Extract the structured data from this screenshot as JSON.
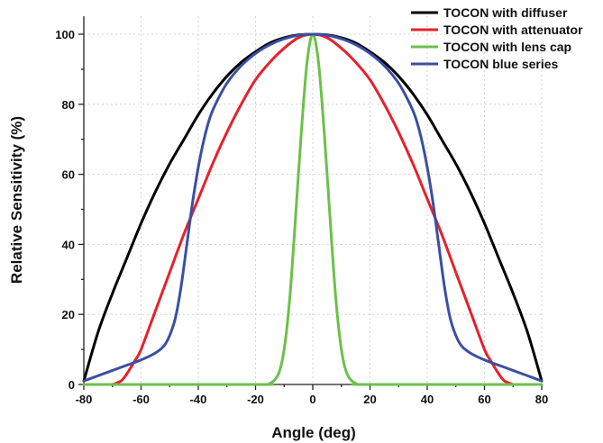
{
  "chart_data": {
    "type": "line",
    "title": "",
    "xlabel": "Angle (deg)",
    "ylabel": "Relative Sensitivity (%)",
    "xlim": [
      -80,
      80
    ],
    "ylim": [
      0,
      100
    ],
    "x_ticks": [
      "-80",
      "-60",
      "-40",
      "-20",
      "0",
      "20",
      "40",
      "60",
      "80"
    ],
    "y_ticks": [
      "0",
      "20",
      "40",
      "60",
      "80",
      "100"
    ],
    "grid": true,
    "legend_position": "top-right",
    "series": [
      {
        "name": "TOCON with diffuser",
        "color": "#000000",
        "x": [
          -80,
          -75,
          -70,
          -65,
          -60,
          -55,
          -50,
          -45,
          -40,
          -35,
          -30,
          -25,
          -20,
          -15,
          -10,
          -5,
          0,
          5,
          10,
          15,
          20,
          25,
          30,
          35,
          40,
          45,
          50,
          55,
          60,
          65,
          70,
          75,
          80
        ],
        "y": [
          1,
          15,
          26,
          36,
          46,
          55,
          63,
          70,
          77,
          83,
          88,
          92,
          95,
          97.5,
          99,
          99.8,
          100,
          99.8,
          99,
          97.5,
          95,
          92,
          88,
          83,
          77,
          70,
          63,
          55,
          46,
          36,
          26,
          15,
          1
        ]
      },
      {
        "name": "TOCON with attenuator",
        "color": "#e8202a",
        "x": [
          -70,
          -67,
          -65,
          -62,
          -60,
          -55,
          -50,
          -45,
          -40,
          -35,
          -30,
          -25,
          -20,
          -15,
          -10,
          -5,
          0,
          5,
          10,
          15,
          20,
          25,
          30,
          35,
          40,
          45,
          50,
          55,
          60,
          62,
          65,
          67,
          70
        ],
        "y": [
          0,
          1,
          3,
          7,
          10,
          21,
          32,
          43,
          53,
          63,
          72,
          80,
          87,
          92,
          96,
          99,
          100,
          99,
          96,
          92,
          87,
          80,
          72,
          63,
          53,
          43,
          32,
          21,
          10,
          7,
          3,
          1,
          0
        ]
      },
      {
        "name": "TOCON with lens cap",
        "color": "#6cc04a",
        "x": [
          -80,
          -20,
          -15,
          -12,
          -10,
          -8,
          -6,
          -4,
          -2,
          0,
          2,
          4,
          6,
          8,
          10,
          12,
          15,
          20,
          80
        ],
        "y": [
          0,
          0,
          0.3,
          3,
          10,
          25,
          48,
          72,
          92,
          100,
          92,
          72,
          48,
          25,
          10,
          3,
          0.3,
          0,
          0
        ]
      },
      {
        "name": "TOCON blue series",
        "color": "#3a4fa3",
        "x": [
          -80,
          -75,
          -70,
          -65,
          -60,
          -55,
          -52,
          -50,
          -48,
          -46,
          -44,
          -42,
          -40,
          -38,
          -36,
          -34,
          -30,
          -25,
          -20,
          -15,
          -10,
          -5,
          0,
          5,
          10,
          15,
          20,
          25,
          30,
          34,
          36,
          38,
          40,
          42,
          44,
          46,
          48,
          50,
          52,
          55,
          60,
          65,
          70,
          75,
          80
        ],
        "y": [
          1,
          2.5,
          4,
          5.5,
          7,
          9,
          11,
          14,
          19,
          28,
          40,
          52,
          62,
          70,
          76,
          80,
          86,
          91,
          94.5,
          97,
          98.7,
          99.7,
          100,
          99.7,
          98.7,
          97,
          94.5,
          91,
          86,
          80,
          76,
          70,
          62,
          52,
          40,
          28,
          19,
          14,
          11,
          9,
          7,
          5.5,
          4,
          2.5,
          1
        ]
      }
    ]
  }
}
